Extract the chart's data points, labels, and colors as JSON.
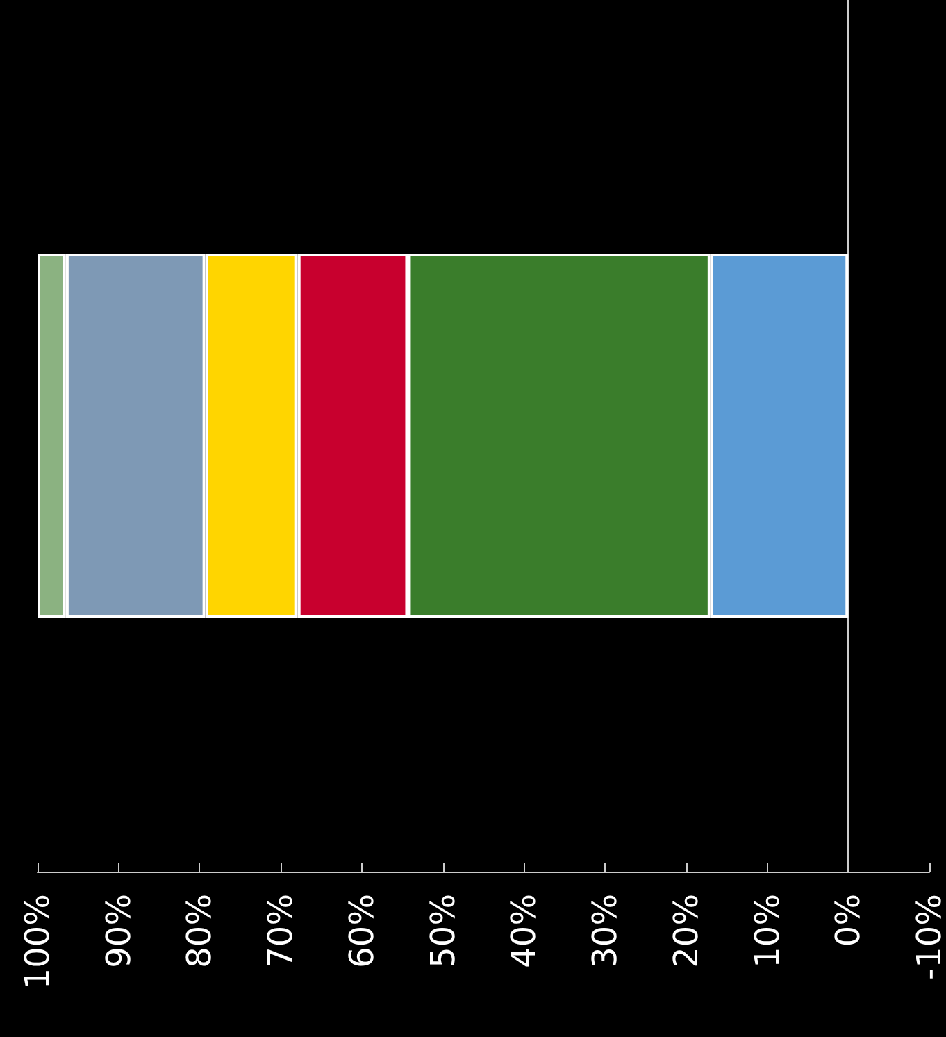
{
  "chart_data": {
    "type": "bar",
    "orientation": "horizontal",
    "stacked": true,
    "categories": [
      null
    ],
    "series": [
      {
        "color": "#5b9bd5",
        "values": [
          17.0
        ]
      },
      {
        "color": "#3a7d2b",
        "values": [
          37.3
        ]
      },
      {
        "color": "#c8002e",
        "values": [
          13.6
        ]
      },
      {
        "color": "#ffd500",
        "values": [
          11.4
        ]
      },
      {
        "color": "#7e99b5",
        "values": [
          17.2
        ]
      },
      {
        "color": "#8bb281",
        "values": [
          3.5
        ]
      }
    ],
    "xlim": [
      100,
      -10
    ],
    "xticks": [
      {
        "value": 100,
        "label": "100%"
      },
      {
        "value": 90,
        "label": "90%"
      },
      {
        "value": 80,
        "label": "80%"
      },
      {
        "value": 70,
        "label": "70%"
      },
      {
        "value": 60,
        "label": "60%"
      },
      {
        "value": 50,
        "label": "50%"
      },
      {
        "value": 40,
        "label": "40%"
      },
      {
        "value": 30,
        "label": "30%"
      },
      {
        "value": 20,
        "label": "20%"
      },
      {
        "value": 10,
        "label": "10%"
      },
      {
        "value": 0,
        "label": "0%"
      },
      {
        "value": -10,
        "label": "-10%"
      }
    ],
    "data_labels": false
  }
}
